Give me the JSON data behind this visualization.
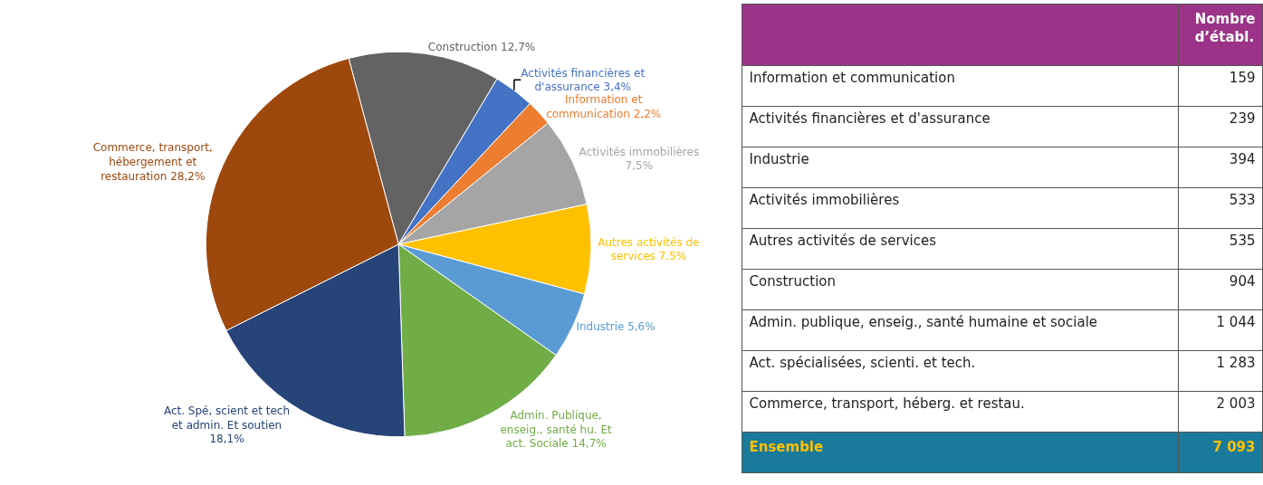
{
  "chart_data": [
    {
      "type": "pie",
      "categories": [
        "Construction",
        "Activités financières et d'assurance",
        "Information et communication",
        "Activités immobilières",
        "Autres activités de services",
        "Industrie",
        "Admin. Publique, enseig., santé hu. Et act. Sociale",
        "Act. Spé, scient et tech et admin. Et soutien",
        "Commerce, transport, hébergement et restauration"
      ],
      "values": [
        12.7,
        3.4,
        2.2,
        7.5,
        7.5,
        5.6,
        14.7,
        18.1,
        28.2
      ],
      "value_labels": [
        "12,7%",
        "3,4%",
        "2,2%",
        "7,5%",
        "7,5%",
        "5,6%",
        "14,7%",
        "18,1%",
        "28,2%"
      ],
      "colors": [
        "#636363",
        "#4472c4",
        "#ed7d31",
        "#a5a5a5",
        "#ffc000",
        "#5b9bd5",
        "#70ad47",
        "#264478",
        "#9e480e"
      ]
    },
    {
      "type": "other",
      "title": "Nombre d’établ.",
      "categories": [
        "Information et communication",
        "Activités financières et d'assurance",
        "Industrie",
        "Activités immobilières",
        "Autres activités de services",
        "Construction",
        "Admin. publique, enseig., santé humaine et sociale",
        "Act. spécialisées, scienti. et tech.",
        "Commerce, transport, héberg. et restau."
      ],
      "value_labels": [
        "159",
        "239",
        "394",
        "533",
        "535",
        "904",
        "1 044",
        "1 283",
        "2 003"
      ],
      "annotations": [
        "Ensemble"
      ],
      "totals": [
        "7 093"
      ]
    }
  ]
}
